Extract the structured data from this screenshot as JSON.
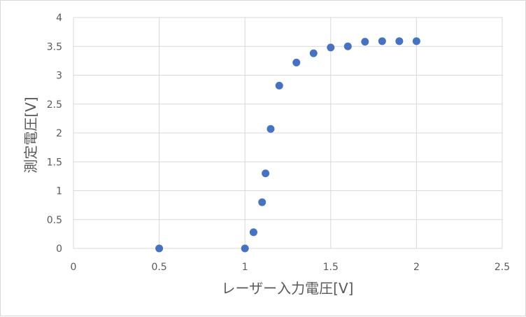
{
  "chart_data": {
    "type": "scatter",
    "xlabel": "レーザー入力電圧[V]",
    "ylabel": "測定電圧[V]",
    "xlim": [
      0,
      2.5
    ],
    "ylim": [
      0,
      4
    ],
    "x_ticks": [
      "0",
      "0.5",
      "1",
      "1.5",
      "2",
      "2.5"
    ],
    "y_ticks": [
      "0",
      "0.5",
      "1",
      "1.5",
      "2",
      "2.5",
      "3",
      "3.5",
      "4"
    ],
    "grid": true,
    "legend": "none",
    "marker_color": "#4472C4",
    "series": [
      {
        "x": [
          0.5,
          1.0,
          1.05,
          1.1,
          1.12,
          1.15,
          1.2,
          1.3,
          1.4,
          1.5,
          1.6,
          1.7,
          1.8,
          1.9,
          2.0
        ],
        "y": [
          0.0,
          0.0,
          0.28,
          0.8,
          1.3,
          2.07,
          2.82,
          3.22,
          3.38,
          3.48,
          3.5,
          3.58,
          3.59,
          3.59,
          3.59
        ]
      }
    ]
  }
}
